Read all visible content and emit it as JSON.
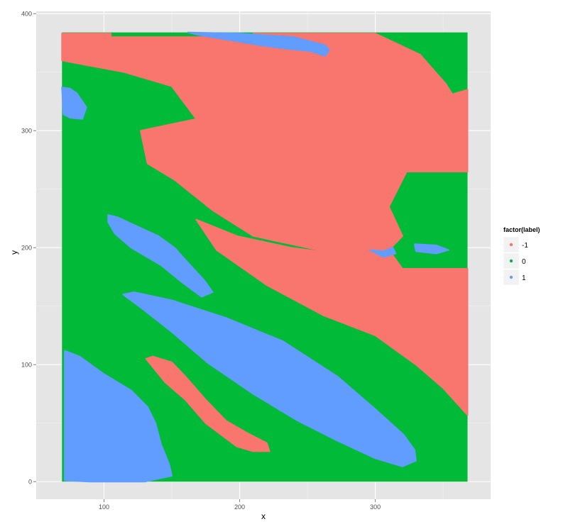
{
  "chart_data": {
    "type": "scatter",
    "title": "",
    "xlabel": "x",
    "ylabel": "y",
    "xlim": [
      50,
      385
    ],
    "ylim": [
      -15,
      402
    ],
    "x_ticks": [
      100,
      200,
      300
    ],
    "y_ticks": [
      0,
      100,
      200,
      300,
      400
    ],
    "grid": true,
    "legend": {
      "title": "factor(label)",
      "position": "right",
      "entries": [
        {
          "label": "-1",
          "color": "#F8766D"
        },
        {
          "label": "0",
          "color": "#00BA38"
        },
        {
          "label": "1",
          "color": "#619CFF"
        }
      ]
    },
    "point_extent": {
      "x": [
        69,
        368
      ],
      "y": [
        0,
        384
      ]
    },
    "background_label": "0",
    "regions": [
      {
        "label": "-1",
        "polygon": [
          [
            69,
            383
          ],
          [
            105,
            383
          ],
          [
            105,
            380
          ],
          [
            210,
            380
          ],
          [
            210,
            383
          ],
          [
            300,
            383
          ],
          [
            333,
            365
          ],
          [
            352,
            340
          ],
          [
            360,
            325
          ],
          [
            368,
            300
          ],
          [
            368,
            265
          ],
          [
            323,
            265
          ],
          [
            310,
            235
          ],
          [
            320,
            210
          ],
          [
            310,
            198
          ],
          [
            270,
            195
          ],
          [
            250,
            200
          ],
          [
            210,
            210
          ],
          [
            180,
            232
          ],
          [
            152,
            258
          ],
          [
            132,
            272
          ],
          [
            127,
            300
          ],
          [
            168,
            310
          ],
          [
            150,
            338
          ],
          [
            115,
            350
          ],
          [
            69,
            360
          ]
        ]
      },
      {
        "label": "-1",
        "polygon": [
          [
            252,
            327
          ],
          [
            258,
            325
          ],
          [
            280,
            322
          ],
          [
            296,
            318
          ],
          [
            305,
            315
          ],
          [
            322,
            320
          ],
          [
            345,
            327
          ],
          [
            368,
            335
          ],
          [
            368,
            265
          ],
          [
            323,
            265
          ],
          [
            310,
            235
          ],
          [
            320,
            210
          ],
          [
            310,
            198
          ],
          [
            270,
            195
          ],
          [
            250,
            200
          ],
          [
            241,
            210
          ],
          [
            230,
            270
          ],
          [
            245,
            298
          ],
          [
            258,
            298
          ],
          [
            270,
            318
          ]
        ]
      },
      {
        "label": "-1",
        "polygon": [
          [
            368,
            182
          ],
          [
            368,
            57
          ],
          [
            350,
            80
          ],
          [
            330,
            100
          ],
          [
            300,
            125
          ],
          [
            262,
            142
          ],
          [
            220,
            168
          ],
          [
            183,
            198
          ],
          [
            168,
            224
          ],
          [
            198,
            210
          ],
          [
            238,
            200
          ],
          [
            270,
            195
          ],
          [
            310,
            198
          ],
          [
            320,
            182
          ]
        ]
      },
      {
        "label": "-1",
        "polygon": [
          [
            131,
            105
          ],
          [
            136,
            107
          ],
          [
            150,
            102
          ],
          [
            160,
            90
          ],
          [
            175,
            70
          ],
          [
            190,
            52
          ],
          [
            205,
            42
          ],
          [
            220,
            33
          ],
          [
            222,
            26
          ],
          [
            210,
            26
          ],
          [
            198,
            30
          ],
          [
            175,
            50
          ],
          [
            160,
            70
          ],
          [
            145,
            85
          ]
        ]
      },
      {
        "label": "1",
        "polygon": [
          [
            162,
            384
          ],
          [
            169,
            382
          ],
          [
            190,
            378
          ],
          [
            215,
            373
          ],
          [
            235,
            370
          ],
          [
            252,
            368
          ],
          [
            263,
            364
          ],
          [
            266,
            369
          ],
          [
            263,
            373
          ],
          [
            240,
            380
          ],
          [
            200,
            383
          ]
        ]
      },
      {
        "label": "1",
        "polygon": [
          [
            69,
            337
          ],
          [
            75,
            336
          ],
          [
            80,
            332
          ],
          [
            87,
            320
          ],
          [
            84,
            310
          ],
          [
            75,
            311
          ],
          [
            70,
            314
          ]
        ]
      },
      {
        "label": "1",
        "polygon": [
          [
            103,
            228
          ],
          [
            110,
            226
          ],
          [
            125,
            218
          ],
          [
            140,
            210
          ],
          [
            152,
            200
          ],
          [
            162,
            187
          ],
          [
            174,
            172
          ],
          [
            180,
            162
          ],
          [
            172,
            158
          ],
          [
            158,
            170
          ],
          [
            142,
            185
          ],
          [
            120,
            200
          ],
          [
            108,
            212
          ],
          [
            103,
            222
          ]
        ]
      },
      {
        "label": "1",
        "polygon": [
          [
            114,
            160
          ],
          [
            122,
            162
          ],
          [
            150,
            155
          ],
          [
            190,
            140
          ],
          [
            232,
            120
          ],
          [
            272,
            90
          ],
          [
            300,
            62
          ],
          [
            321,
            40
          ],
          [
            329,
            27
          ],
          [
            330,
            18
          ],
          [
            320,
            13
          ],
          [
            300,
            20
          ],
          [
            272,
            35
          ],
          [
            243,
            52
          ],
          [
            210,
            75
          ],
          [
            176,
            102
          ],
          [
            150,
            128
          ],
          [
            128,
            148
          ]
        ]
      },
      {
        "label": "1",
        "polygon": [
          [
            71,
            112
          ],
          [
            82,
            107
          ],
          [
            100,
            92
          ],
          [
            120,
            78
          ],
          [
            132,
            64
          ],
          [
            138,
            50
          ],
          [
            142,
            32
          ],
          [
            148,
            15
          ],
          [
            150,
            5
          ],
          [
            130,
            0
          ],
          [
            110,
            0
          ],
          [
            90,
            0
          ],
          [
            71,
            1
          ]
        ]
      },
      {
        "label": "1",
        "polygon": [
          [
            296,
            198
          ],
          [
            306,
            197
          ],
          [
            313,
            200
          ],
          [
            315,
            195
          ],
          [
            306,
            192
          ]
        ]
      },
      {
        "label": "1",
        "polygon": [
          [
            329,
            203
          ],
          [
            345,
            202
          ],
          [
            354,
            198
          ],
          [
            345,
            195
          ],
          [
            330,
            197
          ]
        ]
      }
    ]
  }
}
